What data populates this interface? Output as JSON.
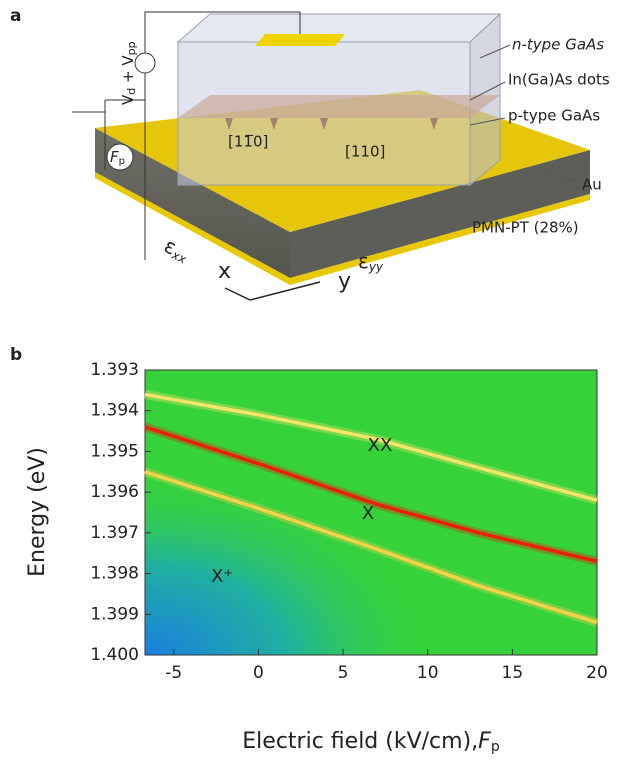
{
  "schematic": {
    "panel_label": "a",
    "labels": {
      "n_gaas": "n-type GaAs",
      "dots": "In(Ga)As dots",
      "p_gaas": "p-type GaAs",
      "au": "Au",
      "pmn": "PMN-PT (28%)",
      "dir1": "[11̅0]",
      "dir2": "[110]",
      "voltage": "V",
      "voltage_sub1": "d",
      "voltage_plus": " + V",
      "voltage_sub2": "pp",
      "field": "F",
      "field_sub": "p",
      "eps_x": "ε",
      "eps_x_sub": "xx",
      "eps_y": "ε",
      "eps_y_sub": "yy",
      "axis_x": "x",
      "axis_y": "y"
    }
  },
  "chart_data": {
    "type": "line",
    "panel_label": "b",
    "xlabel": "Electric field (kV/cm),",
    "xlabel_symbol": "F",
    "xlabel_sub": "p",
    "ylabel": "Energy (eV)",
    "x": [
      -6.7,
      0,
      7,
      13,
      20
    ],
    "series": [
      {
        "color": "#f4e46a",
        "values": [
          1.3936,
          1.3941,
          1.3947,
          1.3954,
          1.3962
        ]
      },
      {
        "color": "#e8200c",
        "values": [
          1.3944,
          1.3953,
          1.3963,
          1.397,
          1.3977
        ]
      },
      {
        "color": "#f6d24a",
        "values": [
          1.3955,
          1.3964,
          1.3974,
          1.3983,
          1.3992
        ]
      }
    ],
    "annotations": [
      "XX",
      "X",
      "X⁺"
    ],
    "xlim": [
      -6.7,
      20
    ],
    "xticks": [
      -5,
      0,
      5,
      10,
      15,
      20
    ],
    "ylim": [
      1.4,
      1.393
    ],
    "yticks": [
      1.393,
      1.394,
      1.395,
      1.396,
      1.397,
      1.398,
      1.399,
      {
        "value": 1.4,
        "label": "1.400"
      }
    ]
  }
}
